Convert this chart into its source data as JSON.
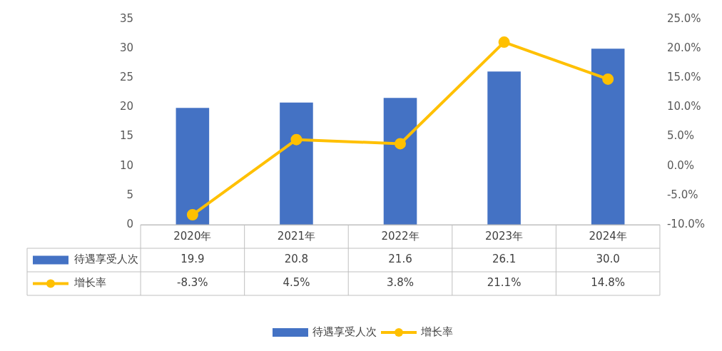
{
  "chart_data": {
    "type": "bar",
    "categories": [
      "2020年",
      "2021年",
      "2022年",
      "2023年",
      "2024年"
    ],
    "series": [
      {
        "name": "待遇享受人次",
        "color": "#4472c4",
        "values": [
          19.9,
          20.8,
          21.6,
          26.1,
          30.0
        ],
        "value_labels": [
          "19.9",
          "20.8",
          "21.6",
          "26.1",
          "30.0"
        ]
      },
      {
        "name": "增长率",
        "type": "line",
        "axis": "y2",
        "color": "#ffc000",
        "marker": "circle",
        "values": [
          -8.3,
          4.5,
          3.8,
          21.1,
          14.8
        ],
        "value_labels": [
          "-8.3%",
          "4.5%",
          "3.8%",
          "21.1%",
          "14.8%"
        ]
      }
    ],
    "ylim": [
      0,
      35
    ],
    "yticks": [
      0,
      5,
      10,
      15,
      20,
      25,
      30,
      35
    ],
    "y2lim": [
      -10,
      25
    ],
    "y2ticks": [
      {
        "value": -10,
        "label": "-10.0%"
      },
      {
        "value": -5,
        "label": "-5.0%"
      },
      {
        "value": 0,
        "label": "0.0%"
      },
      {
        "value": 5,
        "label": "5.0%"
      },
      {
        "value": 10,
        "label": "10.0%"
      },
      {
        "value": 15,
        "label": "15.0%"
      },
      {
        "value": 20,
        "label": "20.0%"
      },
      {
        "value": 25,
        "label": "25.0%"
      }
    ],
    "grid": false,
    "legend": "bottom"
  }
}
